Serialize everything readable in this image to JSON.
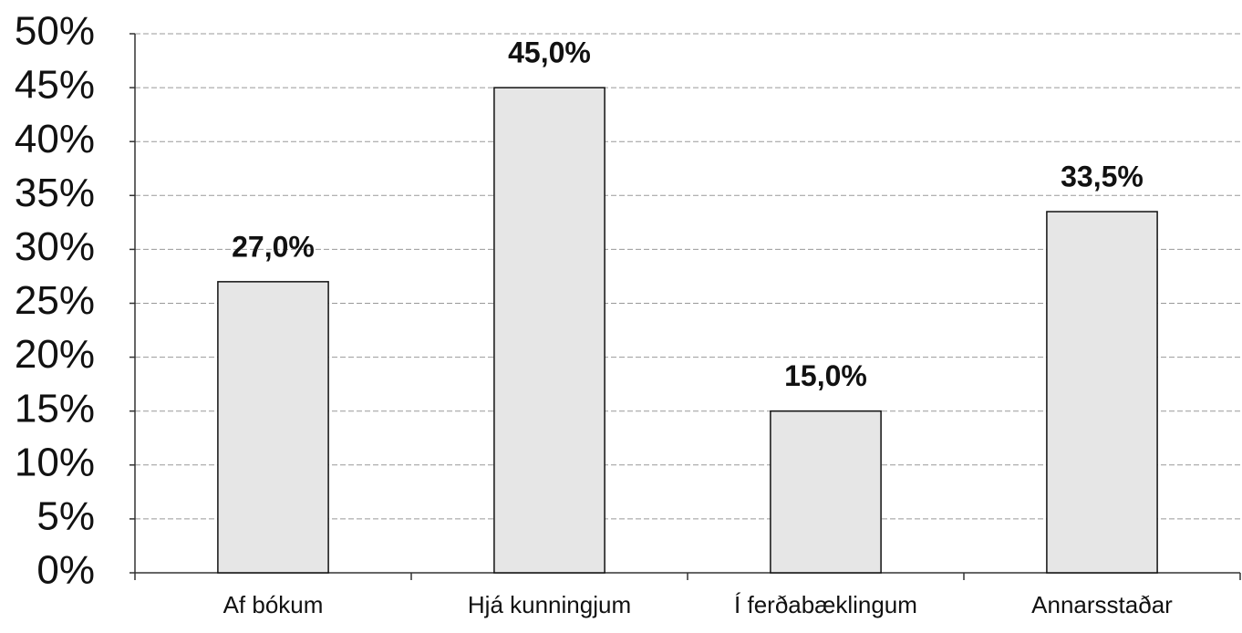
{
  "chart_data": {
    "type": "bar",
    "categories": [
      "Af bókum",
      "Hjá kunningjum",
      "Í ferðabæklingum",
      "Annarsstaðar"
    ],
    "values": [
      27.0,
      45.0,
      15.0,
      33.5
    ],
    "value_labels": [
      "27,0%",
      "45,0%",
      "15,0%",
      "33,5%"
    ],
    "color": "#e6e6e6",
    "ylim": [
      0,
      50
    ],
    "yticks": [
      {
        "value": 0,
        "label": "0%"
      },
      {
        "value": 5,
        "label": "5%"
      },
      {
        "value": 10,
        "label": "10%"
      },
      {
        "value": 15,
        "label": "15%"
      },
      {
        "value": 20,
        "label": "20%"
      },
      {
        "value": 25,
        "label": "25%"
      },
      {
        "value": 30,
        "label": "30%"
      },
      {
        "value": 35,
        "label": "35%"
      },
      {
        "value": 40,
        "label": "40%"
      },
      {
        "value": 45,
        "label": "45%"
      },
      {
        "value": 50,
        "label": "50%"
      }
    ],
    "grid": true
  }
}
